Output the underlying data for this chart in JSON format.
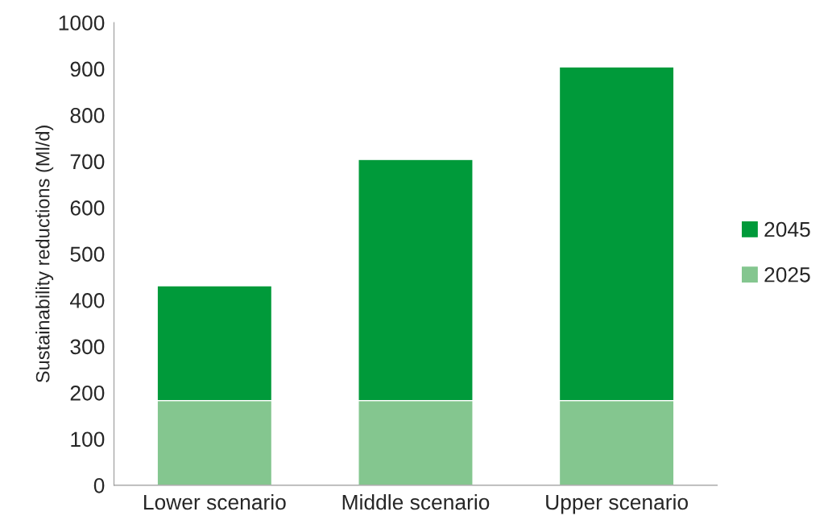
{
  "chart_data": {
    "type": "bar",
    "stacked": true,
    "ylabel": "Sustainability reductions (Ml/d)",
    "categories": [
      "Lower scenario",
      "Middle scenario",
      "Upper scenario"
    ],
    "series": [
      {
        "name": "2025",
        "color": "#84c68f",
        "values": [
          183,
          183,
          183
        ]
      },
      {
        "name": "2045",
        "color": "#009a3a",
        "values": [
          248,
          521,
          721
        ]
      }
    ],
    "ylim": [
      0,
      1000
    ],
    "yticks": [
      0,
      100,
      200,
      300,
      400,
      500,
      600,
      700,
      800,
      900,
      1000
    ],
    "grid": false,
    "legend": "right"
  }
}
